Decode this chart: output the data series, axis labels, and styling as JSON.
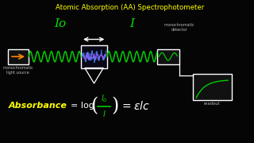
{
  "title": "Atomic Absorption (AA) Spectrophotometer",
  "title_color": "#FFFF00",
  "bg_color": "#050505",
  "Io_label": "Io",
  "I_label": "I",
  "label_color": "#00DD00",
  "formula_absorbance_color": "#FFFF00",
  "formula_rest_color": "#FFFFFF",
  "formula_fraction_color": "#00CC00",
  "mono_light_label": "monochromatic\nlight source",
  "mono_detector_label": "monochromatic\ndetector",
  "readout_label": "readout",
  "label_text_color": "#BBBBBB",
  "wave_color": "#00CC00",
  "arrow_color": "#FFFFFF",
  "box_color": "#FFFFFF",
  "xlim": [
    0,
    10
  ],
  "ylim": [
    0,
    6
  ]
}
